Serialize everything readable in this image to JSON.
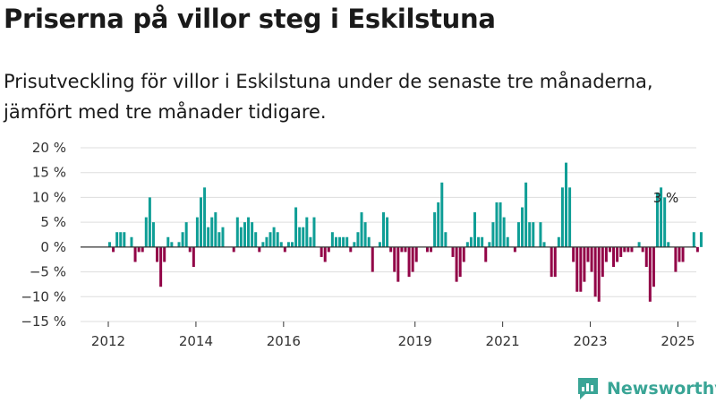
{
  "header": {
    "title": "Priserna på villor steg i Eskilstuna",
    "subtitle": "Prisutveckling för villor i Eskilstuna under de senaste tre månaderna, jämfört med tre månader tidigare."
  },
  "brand": {
    "name": "Newsworthy"
  },
  "colors": {
    "positive": "#0f9e96",
    "negative": "#920447",
    "grid": "#dddddd",
    "axis": "#333333",
    "brand": "#3aa596"
  },
  "chart_data": {
    "type": "bar",
    "title": "",
    "xlabel": "",
    "ylabel": "",
    "ylim": [
      -15,
      20
    ],
    "y_ticks": [
      20,
      15,
      10,
      5,
      0,
      -5,
      -10,
      -15
    ],
    "y_tick_labels": [
      "20 %",
      "15 %",
      "10 %",
      "5 %",
      "0 %",
      "−5 %",
      "−10 %",
      "−15 %"
    ],
    "x_ticks": [
      "2012",
      "2014",
      "2016",
      "2019",
      "2021",
      "2023",
      "2025"
    ],
    "start_year": 2012,
    "grid": true,
    "annotation": {
      "text": "3 %",
      "value": 3
    },
    "values": [
      1,
      -1,
      3,
      3,
      3,
      0,
      2,
      -3,
      -1,
      -1,
      6,
      10,
      5,
      -3,
      -8,
      -3,
      2,
      1,
      0,
      1,
      3,
      5,
      -1,
      -4,
      6,
      10,
      12,
      4,
      6,
      7,
      3,
      4,
      0,
      0,
      -1,
      6,
      4,
      5,
      6,
      5,
      3,
      -1,
      1,
      2,
      3,
      4,
      3,
      1,
      -1,
      1,
      1,
      8,
      4,
      4,
      6,
      2,
      6,
      0,
      -2,
      -3,
      -1,
      3,
      2,
      2,
      2,
      2,
      -1,
      1,
      3,
      7,
      5,
      2,
      -5,
      0,
      1,
      7,
      6,
      -1,
      -5,
      -7,
      -1,
      -1,
      -6,
      -5,
      -3,
      0,
      0,
      -1,
      -1,
      7,
      9,
      13,
      3,
      0,
      -2,
      -7,
      -6,
      -3,
      1,
      2,
      7,
      2,
      2,
      -3,
      1,
      5,
      9,
      9,
      6,
      2,
      0,
      -1,
      5,
      8,
      13,
      5,
      5,
      0,
      5,
      1,
      0,
      -6,
      -6,
      2,
      12,
      17,
      12,
      -3,
      -9,
      -9,
      -7,
      -3,
      -5,
      -10,
      -11,
      -6,
      -3,
      -1,
      -4,
      -3,
      -2,
      -1,
      -1,
      -1,
      0,
      1,
      -1,
      -4,
      -11,
      -8,
      11,
      12,
      10,
      1,
      0,
      -5,
      -3,
      -3,
      0,
      0,
      3,
      -1,
      3
    ]
  }
}
